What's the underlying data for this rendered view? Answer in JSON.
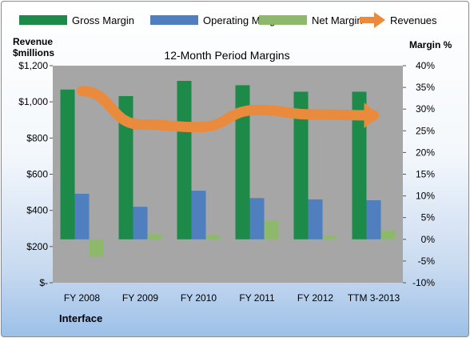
{
  "chart_data": {
    "type": "bar",
    "title": "12-Month Period Margins",
    "y_left_label_line1": "Revenue",
    "y_left_label_line2": "$millions",
    "y_right_label": "Margin %",
    "footer_label": "Interface",
    "categories": [
      "FY 2008",
      "FY 2009",
      "FY 2010",
      "FY 2011",
      "FY 2012",
      "TTM 3-2013"
    ],
    "y_left_ticks": [
      "$-",
      "$200",
      "$400",
      "$600",
      "$800",
      "$1,000",
      "$1,200"
    ],
    "y_left_range": [
      0,
      1200
    ],
    "y_right_ticks": [
      "-10%",
      "-5%",
      "0%",
      "5%",
      "10%",
      "15%",
      "20%",
      "25%",
      "30%",
      "35%",
      "40%"
    ],
    "y_right_range": [
      -10,
      40
    ],
    "series": [
      {
        "name": "Gross Margin",
        "type": "bar",
        "axis": "right",
        "color": "#1e8a4a",
        "values": [
          34.5,
          33.0,
          36.5,
          35.5,
          34.0,
          34.0
        ]
      },
      {
        "name": "Operating Margin",
        "type": "bar",
        "axis": "right",
        "color": "#4f7fbf",
        "values": [
          10.5,
          7.5,
          11.2,
          9.5,
          9.2,
          9.0
        ]
      },
      {
        "name": "Net Margin",
        "type": "bar",
        "axis": "right",
        "color": "#8fb96a",
        "values": [
          -4.0,
          1.2,
          1.0,
          4.3,
          0.8,
          2.0
        ]
      },
      {
        "name": "Revenues",
        "type": "line",
        "axis": "left",
        "color": "#ea8a3c",
        "values": [
          1060,
          875,
          860,
          955,
          930,
          925
        ]
      }
    ],
    "legend_position": "top",
    "grid": false
  }
}
